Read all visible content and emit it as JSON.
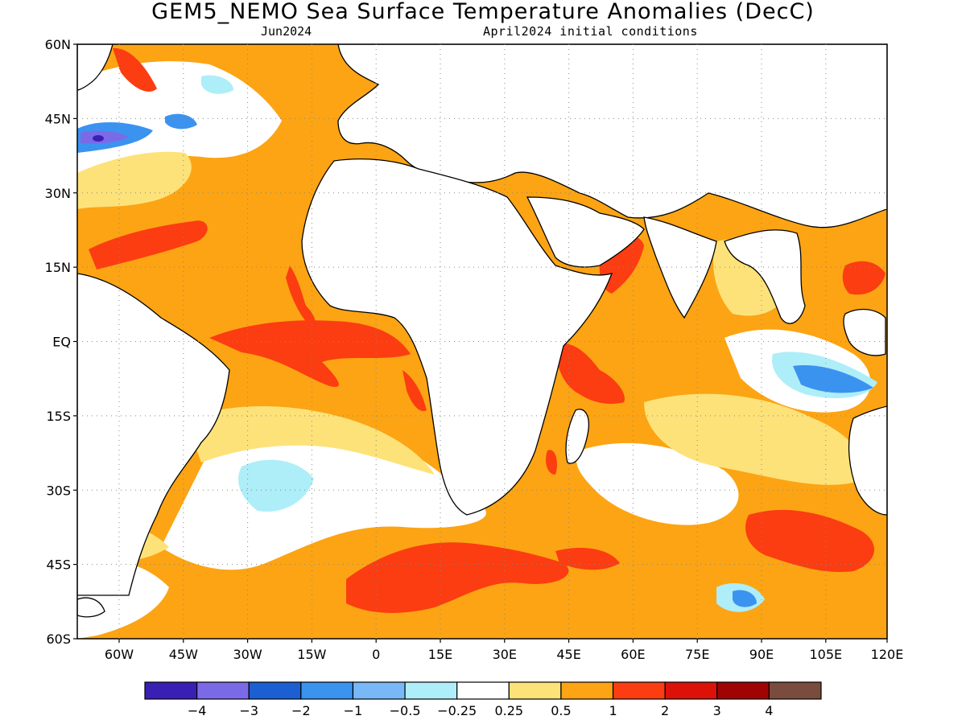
{
  "title": "GEM5_NEMO Sea Surface Temperature Anomalies (DecC)",
  "subtitle_left": "Jun2024",
  "subtitle_right": "April2024 initial conditions",
  "lat_labels": [
    "60N",
    "45N",
    "30N",
    "15N",
    "EQ",
    "15S",
    "30S",
    "45S",
    "60S"
  ],
  "lon_labels": [
    "60W",
    "45W",
    "30W",
    "15W",
    "0",
    "15E",
    "30E",
    "45E",
    "60E",
    "75E",
    "90E",
    "105E",
    "120E"
  ],
  "colorbar": {
    "colors": [
      "#3a1fb5",
      "#7b6ae8",
      "#1b5fd2",
      "#3b93f0",
      "#78b8f6",
      "#aeeef8",
      "#ffffff",
      "#fde27a",
      "#fca413",
      "#fb3d11",
      "#dc1208",
      "#a00303",
      "#7a4c3d"
    ],
    "labels": [
      "−4",
      "−3",
      "−2",
      "−1",
      "−0.5",
      "−0.25",
      "0.25",
      "0.5",
      "1",
      "2",
      "3",
      "4"
    ]
  }
}
